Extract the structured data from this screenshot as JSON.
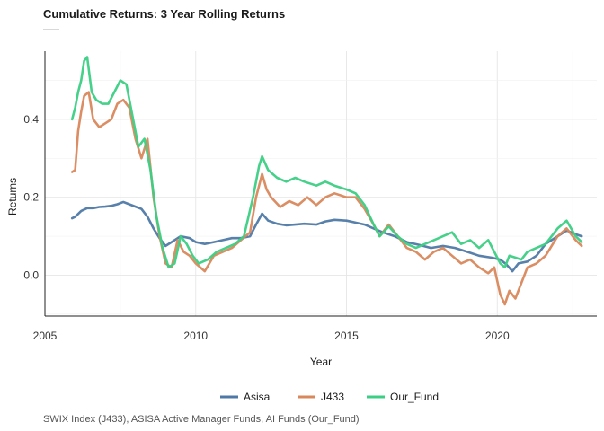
{
  "chart_data": {
    "type": "line",
    "title": "Cumulative Returns: 3 Year Rolling Returns",
    "xlabel": "Year",
    "ylabel": "Returns",
    "caption": "SWIX Index (J433), ASISA Active Manager Funds, AI Funds (Our_Fund)",
    "xlim": [
      2005,
      2023.3
    ],
    "ylim": [
      -0.105,
      0.575
    ],
    "xticks": [
      2005,
      2010,
      2015,
      2020
    ],
    "yticks": [
      0.0,
      0.2,
      0.4
    ],
    "ytick_labels": [
      "0.0",
      "0.2",
      "0.4"
    ],
    "grid": true,
    "legend_position": "bottom",
    "series": [
      {
        "name": "Asisa",
        "color": "#4e79a7",
        "points": [
          [
            2005.9,
            0.146
          ],
          [
            2006.0,
            0.15
          ],
          [
            2006.2,
            0.165
          ],
          [
            2006.4,
            0.172
          ],
          [
            2006.6,
            0.172
          ],
          [
            2006.8,
            0.175
          ],
          [
            2007.0,
            0.176
          ],
          [
            2007.2,
            0.178
          ],
          [
            2007.4,
            0.182
          ],
          [
            2007.6,
            0.188
          ],
          [
            2007.8,
            0.182
          ],
          [
            2008.0,
            0.176
          ],
          [
            2008.2,
            0.17
          ],
          [
            2008.4,
            0.15
          ],
          [
            2008.6,
            0.12
          ],
          [
            2008.8,
            0.095
          ],
          [
            2009.0,
            0.075
          ],
          [
            2009.2,
            0.085
          ],
          [
            2009.5,
            0.1
          ],
          [
            2009.8,
            0.095
          ],
          [
            2010.0,
            0.085
          ],
          [
            2010.3,
            0.08
          ],
          [
            2010.6,
            0.085
          ],
          [
            2010.9,
            0.09
          ],
          [
            2011.2,
            0.095
          ],
          [
            2011.5,
            0.095
          ],
          [
            2011.8,
            0.1
          ],
          [
            2012.0,
            0.13
          ],
          [
            2012.2,
            0.158
          ],
          [
            2012.4,
            0.14
          ],
          [
            2012.7,
            0.132
          ],
          [
            2013.0,
            0.128
          ],
          [
            2013.3,
            0.13
          ],
          [
            2013.6,
            0.132
          ],
          [
            2014.0,
            0.13
          ],
          [
            2014.3,
            0.138
          ],
          [
            2014.6,
            0.142
          ],
          [
            2015.0,
            0.14
          ],
          [
            2015.3,
            0.135
          ],
          [
            2015.6,
            0.13
          ],
          [
            2015.9,
            0.12
          ],
          [
            2016.2,
            0.11
          ],
          [
            2016.6,
            0.1
          ],
          [
            2017.0,
            0.085
          ],
          [
            2017.4,
            0.078
          ],
          [
            2017.8,
            0.07
          ],
          [
            2018.2,
            0.075
          ],
          [
            2018.6,
            0.07
          ],
          [
            2019.0,
            0.06
          ],
          [
            2019.4,
            0.05
          ],
          [
            2019.8,
            0.045
          ],
          [
            2020.1,
            0.04
          ],
          [
            2020.3,
            0.028
          ],
          [
            2020.5,
            0.01
          ],
          [
            2020.7,
            0.03
          ],
          [
            2021.0,
            0.035
          ],
          [
            2021.3,
            0.05
          ],
          [
            2021.6,
            0.08
          ],
          [
            2022.0,
            0.1
          ],
          [
            2022.3,
            0.115
          ],
          [
            2022.6,
            0.105
          ],
          [
            2022.8,
            0.1
          ]
        ]
      },
      {
        "name": "J433",
        "color": "#d9885c",
        "points": [
          [
            2005.9,
            0.265
          ],
          [
            2006.0,
            0.27
          ],
          [
            2006.1,
            0.37
          ],
          [
            2006.2,
            0.42
          ],
          [
            2006.3,
            0.46
          ],
          [
            2006.45,
            0.47
          ],
          [
            2006.6,
            0.4
          ],
          [
            2006.8,
            0.38
          ],
          [
            2007.0,
            0.39
          ],
          [
            2007.2,
            0.4
          ],
          [
            2007.4,
            0.44
          ],
          [
            2007.6,
            0.45
          ],
          [
            2007.8,
            0.43
          ],
          [
            2008.0,
            0.35
          ],
          [
            2008.2,
            0.3
          ],
          [
            2008.4,
            0.35
          ],
          [
            2008.6,
            0.2
          ],
          [
            2008.8,
            0.1
          ],
          [
            2009.0,
            0.03
          ],
          [
            2009.2,
            0.02
          ],
          [
            2009.4,
            0.09
          ],
          [
            2009.6,
            0.06
          ],
          [
            2009.8,
            0.05
          ],
          [
            2010.0,
            0.03
          ],
          [
            2010.3,
            0.01
          ],
          [
            2010.6,
            0.05
          ],
          [
            2010.9,
            0.06
          ],
          [
            2011.2,
            0.07
          ],
          [
            2011.5,
            0.09
          ],
          [
            2011.8,
            0.11
          ],
          [
            2012.0,
            0.2
          ],
          [
            2012.2,
            0.26
          ],
          [
            2012.35,
            0.22
          ],
          [
            2012.5,
            0.2
          ],
          [
            2012.8,
            0.175
          ],
          [
            2013.1,
            0.19
          ],
          [
            2013.4,
            0.18
          ],
          [
            2013.7,
            0.2
          ],
          [
            2014.0,
            0.18
          ],
          [
            2014.3,
            0.2
          ],
          [
            2014.6,
            0.21
          ],
          [
            2015.0,
            0.2
          ],
          [
            2015.3,
            0.2
          ],
          [
            2015.6,
            0.17
          ],
          [
            2015.9,
            0.13
          ],
          [
            2016.1,
            0.1
          ],
          [
            2016.4,
            0.13
          ],
          [
            2016.7,
            0.1
          ],
          [
            2017.0,
            0.07
          ],
          [
            2017.3,
            0.06
          ],
          [
            2017.6,
            0.04
          ],
          [
            2017.9,
            0.06
          ],
          [
            2018.2,
            0.07
          ],
          [
            2018.5,
            0.05
          ],
          [
            2018.8,
            0.03
          ],
          [
            2019.1,
            0.04
          ],
          [
            2019.4,
            0.02
          ],
          [
            2019.7,
            0.005
          ],
          [
            2019.9,
            0.02
          ],
          [
            2020.1,
            -0.05
          ],
          [
            2020.25,
            -0.075
          ],
          [
            2020.4,
            -0.04
          ],
          [
            2020.6,
            -0.06
          ],
          [
            2020.8,
            -0.02
          ],
          [
            2021.0,
            0.02
          ],
          [
            2021.3,
            0.03
          ],
          [
            2021.6,
            0.05
          ],
          [
            2022.0,
            0.1
          ],
          [
            2022.3,
            0.12
          ],
          [
            2022.6,
            0.09
          ],
          [
            2022.8,
            0.075
          ]
        ]
      },
      {
        "name": "Our_Fund",
        "color": "#3ccf84",
        "points": [
          [
            2005.9,
            0.4
          ],
          [
            2006.0,
            0.43
          ],
          [
            2006.1,
            0.47
          ],
          [
            2006.2,
            0.5
          ],
          [
            2006.3,
            0.55
          ],
          [
            2006.4,
            0.56
          ],
          [
            2006.55,
            0.47
          ],
          [
            2006.7,
            0.45
          ],
          [
            2006.9,
            0.44
          ],
          [
            2007.1,
            0.44
          ],
          [
            2007.3,
            0.47
          ],
          [
            2007.5,
            0.5
          ],
          [
            2007.7,
            0.49
          ],
          [
            2007.9,
            0.41
          ],
          [
            2008.1,
            0.33
          ],
          [
            2008.3,
            0.35
          ],
          [
            2008.5,
            0.27
          ],
          [
            2008.7,
            0.15
          ],
          [
            2008.9,
            0.07
          ],
          [
            2009.1,
            0.02
          ],
          [
            2009.3,
            0.03
          ],
          [
            2009.5,
            0.1
          ],
          [
            2009.7,
            0.08
          ],
          [
            2009.9,
            0.05
          ],
          [
            2010.1,
            0.03
          ],
          [
            2010.4,
            0.04
          ],
          [
            2010.7,
            0.06
          ],
          [
            2011.0,
            0.07
          ],
          [
            2011.3,
            0.08
          ],
          [
            2011.6,
            0.1
          ],
          [
            2011.9,
            0.2
          ],
          [
            2012.1,
            0.28
          ],
          [
            2012.2,
            0.305
          ],
          [
            2012.4,
            0.27
          ],
          [
            2012.7,
            0.25
          ],
          [
            2013.0,
            0.24
          ],
          [
            2013.3,
            0.25
          ],
          [
            2013.6,
            0.24
          ],
          [
            2014.0,
            0.23
          ],
          [
            2014.3,
            0.24
          ],
          [
            2014.6,
            0.23
          ],
          [
            2015.0,
            0.22
          ],
          [
            2015.3,
            0.21
          ],
          [
            2015.6,
            0.18
          ],
          [
            2015.9,
            0.13
          ],
          [
            2016.1,
            0.1
          ],
          [
            2016.4,
            0.125
          ],
          [
            2016.7,
            0.1
          ],
          [
            2017.0,
            0.08
          ],
          [
            2017.3,
            0.07
          ],
          [
            2017.6,
            0.08
          ],
          [
            2017.9,
            0.09
          ],
          [
            2018.2,
            0.1
          ],
          [
            2018.5,
            0.11
          ],
          [
            2018.8,
            0.08
          ],
          [
            2019.1,
            0.09
          ],
          [
            2019.4,
            0.07
          ],
          [
            2019.7,
            0.09
          ],
          [
            2019.9,
            0.06
          ],
          [
            2020.1,
            0.03
          ],
          [
            2020.25,
            0.02
          ],
          [
            2020.4,
            0.05
          ],
          [
            2020.6,
            0.045
          ],
          [
            2020.8,
            0.04
          ],
          [
            2021.0,
            0.06
          ],
          [
            2021.3,
            0.07
          ],
          [
            2021.6,
            0.08
          ],
          [
            2022.0,
            0.12
          ],
          [
            2022.3,
            0.14
          ],
          [
            2022.6,
            0.1
          ],
          [
            2022.8,
            0.085
          ]
        ]
      }
    ]
  }
}
